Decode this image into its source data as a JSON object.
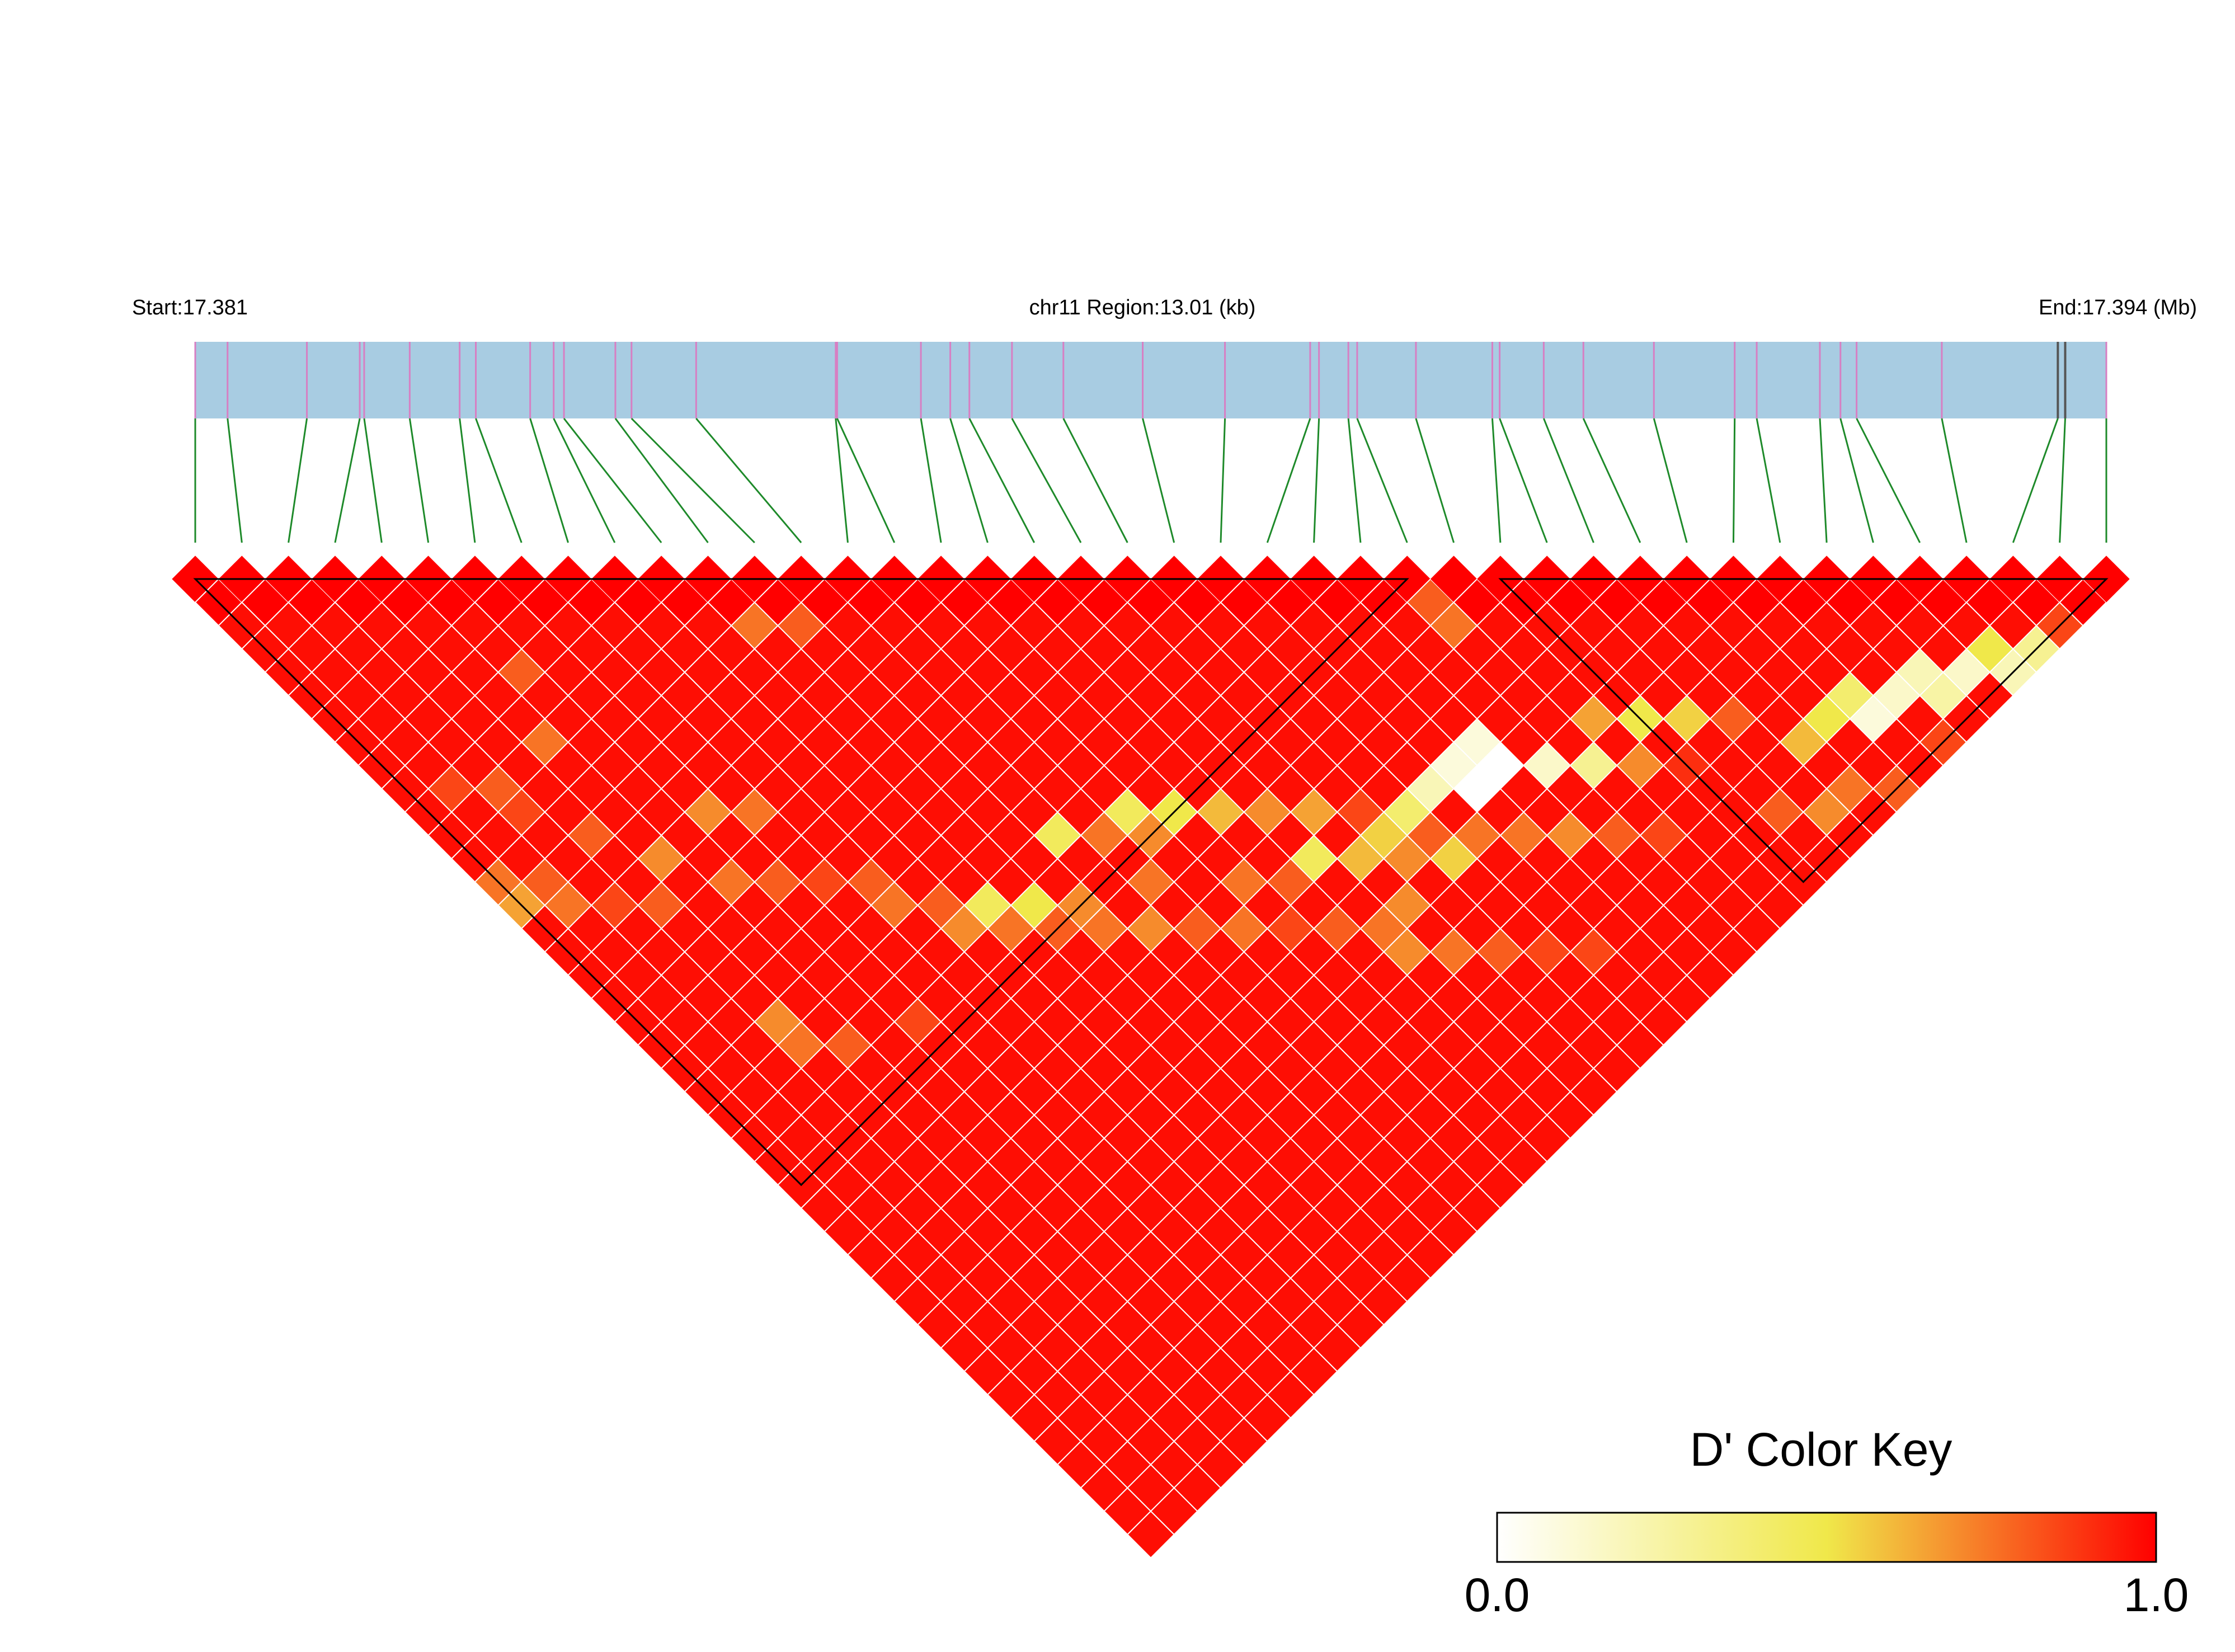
{
  "chart_data": {
    "type": "heatmap",
    "title": "",
    "header": {
      "start_label": "Start:17.381",
      "region_label": "chr11 Region:13.01 (kb)",
      "end_label": "End:17.394 (Mb)"
    },
    "colors": {
      "track": "#a8cce2",
      "snp_tick": "#d77fc3",
      "snp_tick_dark": "#555555",
      "connector": "#1e8a2a",
      "high": "#ff0000",
      "mid": "#f0e84a",
      "low": "#ffffff",
      "block_outline": "#000000"
    },
    "positions_kb": [
      0.0,
      0.22,
      0.76,
      1.12,
      1.15,
      1.46,
      1.8,
      1.91,
      2.28,
      2.44,
      2.51,
      2.86,
      2.97,
      3.41,
      4.36,
      4.37,
      4.94,
      5.14,
      5.27,
      5.56,
      5.91,
      6.45,
      7.01,
      7.59,
      7.65,
      7.85,
      7.91,
      8.31,
      8.83,
      8.88,
      9.18,
      9.45,
      9.93,
      10.48,
      10.63,
      11.06,
      11.2,
      11.31,
      11.89,
      12.68,
      12.73,
      13.01
    ],
    "dark_ticks": [
      39,
      40
    ],
    "color_key": {
      "title": "D' Color Key",
      "min_label": "0.0",
      "max_label": "1.0",
      "range": [
        0,
        1
      ]
    },
    "ld_blocks": [
      [
        0,
        26
      ],
      [
        28,
        41
      ]
    ],
    "default_value": 0.97,
    "exceptions": [
      [
        0,
        13,
        0.75
      ],
      [
        0,
        14,
        0.65
      ],
      [
        1,
        14,
        0.8
      ],
      [
        1,
        15,
        0.75
      ],
      [
        2,
        16,
        0.85
      ],
      [
        3,
        17,
        0.8
      ],
      [
        4,
        16,
        0.7
      ],
      [
        5,
        18,
        0.75
      ],
      [
        6,
        19,
        0.8
      ],
      [
        7,
        20,
        0.85
      ],
      [
        8,
        21,
        0.8
      ],
      [
        2,
        12,
        0.85
      ],
      [
        3,
        22,
        0.7
      ],
      [
        3,
        23,
        0.75
      ],
      [
        4,
        24,
        0.8
      ],
      [
        6,
        25,
        0.85
      ],
      [
        9,
        24,
        0.7
      ],
      [
        10,
        25,
        0.75
      ],
      [
        11,
        26,
        0.8
      ],
      [
        12,
        27,
        0.75
      ],
      [
        13,
        28,
        0.7
      ],
      [
        14,
        29,
        0.8
      ],
      [
        15,
        30,
        0.75
      ],
      [
        16,
        31,
        0.85
      ],
      [
        20,
        31,
        0.55
      ],
      [
        21,
        31,
        0.4
      ],
      [
        22,
        31,
        0.2
      ],
      [
        23,
        31,
        0.1
      ],
      [
        24,
        31,
        0.1
      ],
      [
        23,
        32,
        0.0
      ],
      [
        24,
        32,
        0.0
      ],
      [
        25,
        33,
        0.15
      ],
      [
        26,
        34,
        0.3
      ],
      [
        13,
        24,
        0.45
      ],
      [
        14,
        25,
        0.75
      ],
      [
        15,
        26,
        0.7
      ],
      [
        18,
        30,
        0.45
      ],
      [
        19,
        31,
        0.6
      ],
      [
        20,
        32,
        0.7
      ],
      [
        21,
        33,
        0.55
      ],
      [
        17,
        30,
        0.8
      ],
      [
        16,
        29,
        0.75
      ],
      [
        27,
        33,
        0.65
      ],
      [
        28,
        34,
        0.5
      ],
      [
        29,
        35,
        0.55
      ],
      [
        30,
        36,
        0.8
      ],
      [
        28,
        36,
        0.9
      ],
      [
        27,
        35,
        0.7
      ],
      [
        31,
        38,
        0.6
      ],
      [
        32,
        38,
        0.5
      ],
      [
        33,
        38,
        0.4
      ],
      [
        33,
        39,
        0.1
      ],
      [
        34,
        39,
        0.15
      ],
      [
        35,
        39,
        0.2
      ],
      [
        36,
        40,
        0.15
      ],
      [
        35,
        40,
        0.25
      ],
      [
        37,
        41,
        0.2
      ],
      [
        38,
        41,
        0.3
      ],
      [
        37,
        40,
        0.5
      ],
      [
        30,
        40,
        0.7
      ],
      [
        29,
        39,
        0.8
      ],
      [
        31,
        40,
        0.75
      ],
      [
        32,
        41,
        0.8
      ],
      [
        20,
        30,
        0.85
      ],
      [
        21,
        32,
        0.8
      ],
      [
        22,
        33,
        0.75
      ],
      [
        23,
        34,
        0.75
      ],
      [
        24,
        35,
        0.7
      ],
      [
        25,
        36,
        0.8
      ],
      [
        26,
        37,
        0.85
      ],
      [
        19,
        33,
        0.7
      ],
      [
        18,
        33,
        0.75
      ],
      [
        17,
        32,
        0.8
      ],
      [
        18,
        34,
        0.7
      ],
      [
        19,
        35,
        0.75
      ],
      [
        20,
        36,
        0.8
      ],
      [
        21,
        37,
        0.85
      ],
      [
        22,
        38,
        0.85
      ],
      [
        8,
        22,
        0.75
      ],
      [
        9,
        23,
        0.8
      ],
      [
        10,
        24,
        0.45
      ],
      [
        11,
        25,
        0.5
      ],
      [
        12,
        26,
        0.7
      ],
      [
        2,
        11,
        0.8
      ],
      [
        5,
        9,
        0.8
      ],
      [
        4,
        11,
        0.75
      ],
      [
        26,
        27,
        0.8
      ],
      [
        26,
        28,
        0.75
      ],
      [
        34,
        41,
        0.85
      ],
      [
        39,
        41,
        0.85
      ],
      [
        11,
        13,
        0.75
      ],
      [
        12,
        14,
        0.8
      ],
      [
        15,
        25,
        0.45
      ],
      [
        16,
        26,
        0.5
      ],
      [
        17,
        27,
        0.6
      ],
      [
        14,
        27,
        0.75
      ],
      [
        18,
        28,
        0.7
      ],
      [
        19,
        29,
        0.65
      ],
      [
        6,
        16,
        0.7
      ],
      [
        7,
        17,
        0.75
      ],
      [
        1,
        10,
        0.85
      ],
      [
        3,
        14,
        0.8
      ]
    ]
  }
}
